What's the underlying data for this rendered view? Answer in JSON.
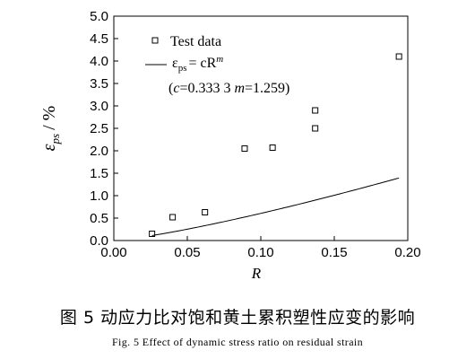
{
  "chart_data": {
    "type": "scatter",
    "xlabel": "R",
    "ylabel_main": "ε",
    "ylabel_sub": "ps",
    "ylabel_unit": "/ %",
    "xlim": [
      0.0,
      0.2
    ],
    "ylim": [
      0.0,
      5.0
    ],
    "x_ticks": [
      "0.00",
      "0.05",
      "0.10",
      "0.15",
      "0.20"
    ],
    "y_ticks": [
      "0.0",
      "0.5",
      "1.0",
      "1.5",
      "2.0",
      "2.5",
      "3.0",
      "3.5",
      "4.0",
      "4.5",
      "5.0"
    ],
    "grid": false,
    "legend_position": "top-left",
    "series": [
      {
        "name": "Test data",
        "marker": "open-square",
        "x": [
          0.026,
          0.04,
          0.062,
          0.089,
          0.108,
          0.137,
          0.137,
          0.194
        ],
        "y": [
          0.15,
          0.52,
          0.63,
          2.05,
          2.07,
          2.5,
          2.9,
          4.1
        ]
      },
      {
        "name": "ε_ps = cR^m",
        "type": "line",
        "function": "power",
        "c": 0.3333,
        "m": 1.259,
        "x_range": [
          0.026,
          0.194
        ]
      }
    ],
    "legend": {
      "marker_label": "Test data",
      "line_label_main": "ε",
      "line_label_sub": "ps",
      "line_label_rest": "= cR",
      "line_label_sup": "m",
      "params_text_c": "c",
      "params_text_c_val": "=0.333 3  ",
      "params_text_m": "m",
      "params_text_m_val": "=1.259)",
      "params_open": "("
    }
  },
  "captions": {
    "chinese": "图 5   动应力比对饱和黄土累积塑性应变的影响",
    "english": "Fig. 5   Effect of dynamic stress ratio on residual strain"
  }
}
